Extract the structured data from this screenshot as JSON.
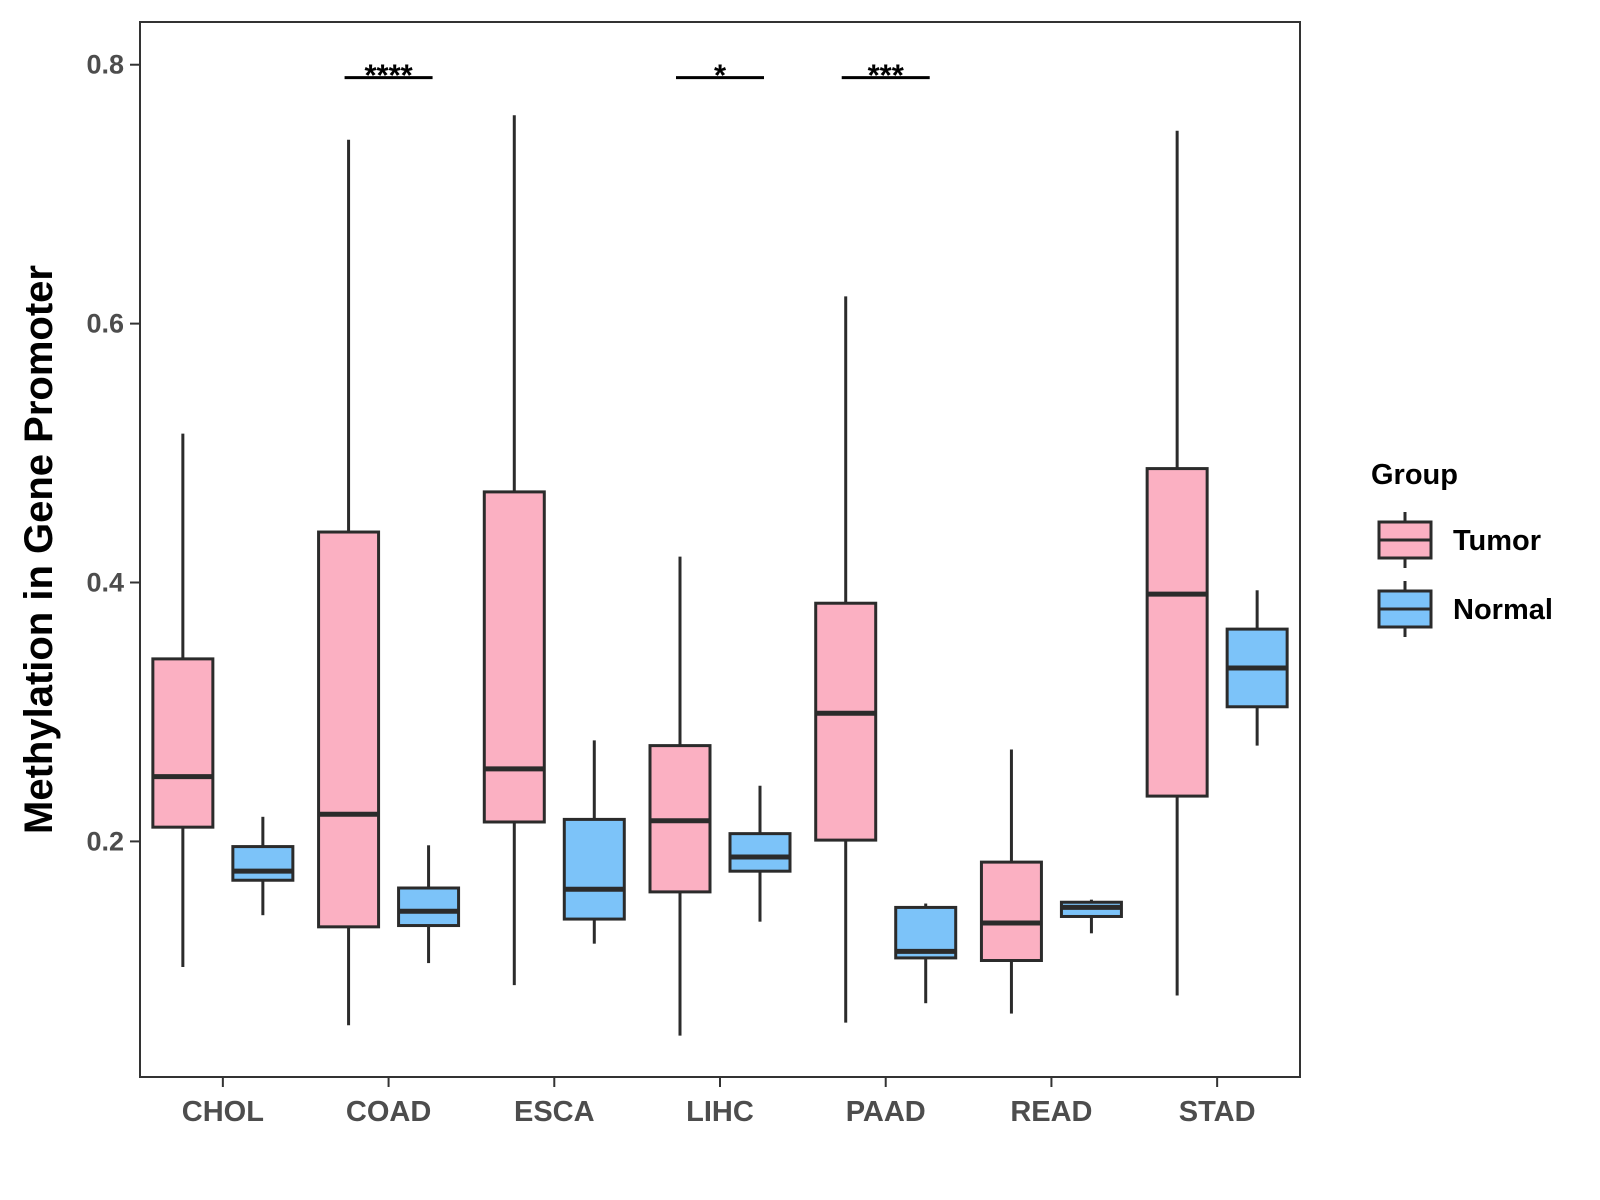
{
  "chart_data": {
    "type": "boxplot",
    "title": "",
    "xlabel": "",
    "ylabel": "Methylation in Gene Promoter",
    "ylim": [
      0.018,
      0.833
    ],
    "yticks": [
      0.2,
      0.4,
      0.6,
      0.8
    ],
    "ytick_labels": [
      "0.2",
      "0.4",
      "0.6",
      "0.8"
    ],
    "categories": [
      "CHOL",
      "COAD",
      "ESCA",
      "LIHC",
      "PAAD",
      "READ",
      "STAD"
    ],
    "legend": {
      "title": "Group",
      "position": "right"
    },
    "series": [
      {
        "name": "Tumor",
        "color": "#FBB0C2",
        "boxes": [
          {
            "min": 0.103,
            "q1": 0.211,
            "median": 0.25,
            "q3": 0.341,
            "max": 0.515
          },
          {
            "min": 0.058,
            "q1": 0.134,
            "median": 0.221,
            "q3": 0.439,
            "max": 0.742
          },
          {
            "min": 0.089,
            "q1": 0.215,
            "median": 0.256,
            "q3": 0.47,
            "max": 0.761
          },
          {
            "min": 0.05,
            "q1": 0.161,
            "median": 0.216,
            "q3": 0.274,
            "max": 0.42
          },
          {
            "min": 0.06,
            "q1": 0.201,
            "median": 0.299,
            "q3": 0.384,
            "max": 0.621
          },
          {
            "min": 0.067,
            "q1": 0.108,
            "median": 0.137,
            "q3": 0.184,
            "max": 0.271
          },
          {
            "min": 0.081,
            "q1": 0.235,
            "median": 0.391,
            "q3": 0.488,
            "max": 0.749
          }
        ]
      },
      {
        "name": "Normal",
        "color": "#7CC3F9",
        "boxes": [
          {
            "min": 0.143,
            "q1": 0.17,
            "median": 0.177,
            "q3": 0.196,
            "max": 0.219
          },
          {
            "min": 0.106,
            "q1": 0.135,
            "median": 0.146,
            "q3": 0.164,
            "max": 0.197
          },
          {
            "min": 0.121,
            "q1": 0.14,
            "median": 0.163,
            "q3": 0.217,
            "max": 0.278
          },
          {
            "min": 0.138,
            "q1": 0.177,
            "median": 0.188,
            "q3": 0.206,
            "max": 0.243
          },
          {
            "min": 0.075,
            "q1": 0.11,
            "median": 0.115,
            "q3": 0.149,
            "max": 0.152
          },
          {
            "min": 0.129,
            "q1": 0.142,
            "median": 0.149,
            "q3": 0.153,
            "max": 0.155
          },
          {
            "min": 0.274,
            "q1": 0.304,
            "median": 0.334,
            "q3": 0.364,
            "max": 0.394
          }
        ]
      }
    ],
    "significance": [
      {
        "category": "COAD",
        "label": "****",
        "y": 0.79
      },
      {
        "category": "LIHC",
        "label": "*",
        "y": 0.79
      },
      {
        "category": "PAAD",
        "label": "***",
        "y": 0.79
      }
    ]
  }
}
